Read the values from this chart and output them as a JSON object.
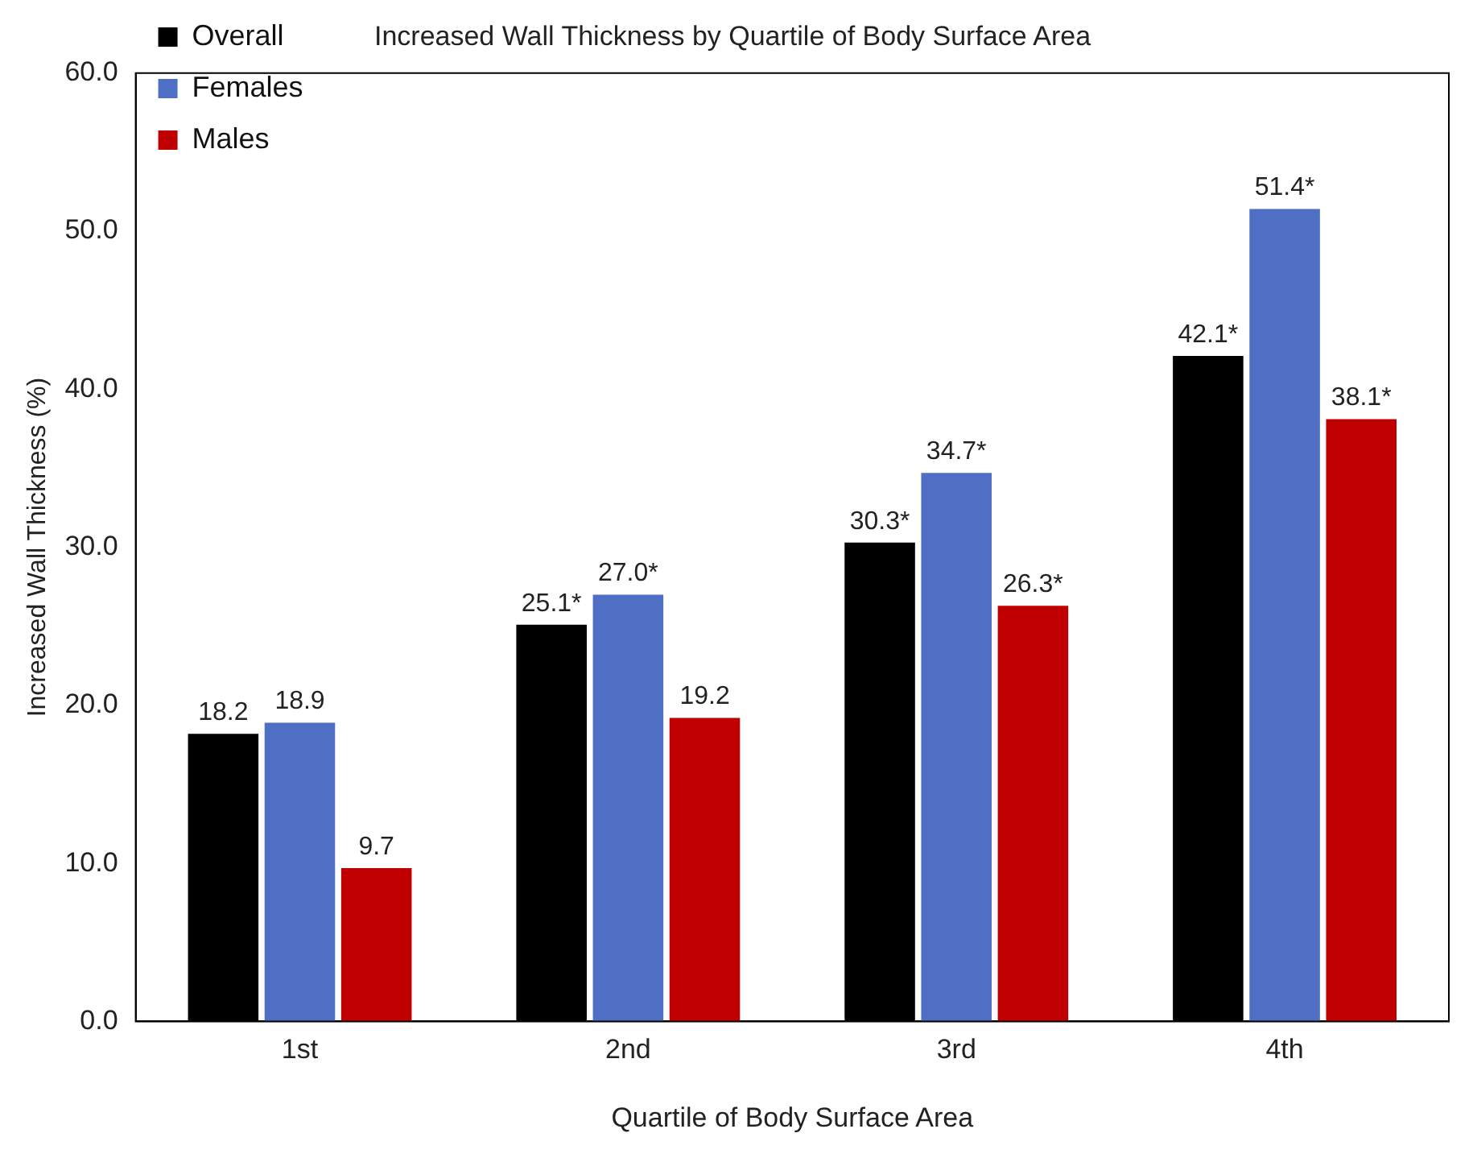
{
  "chart_data": {
    "type": "bar",
    "title": "Increased Wall Thickness by Quartile of Body Surface Area",
    "xlabel": "Quartile of Body Surface Area",
    "ylabel": "Increased Wall Thickness (%)",
    "categories": [
      "1st",
      "2nd",
      "3rd",
      "4th"
    ],
    "series": [
      {
        "name": "Overall",
        "color": "#000000",
        "values": [
          18.2,
          25.1,
          30.3,
          42.1
        ],
        "value_labels": [
          "18.2",
          "25.1*",
          "30.3*",
          "42.1*"
        ]
      },
      {
        "name": "Females",
        "color": "#4f6fc4",
        "values": [
          18.9,
          27.0,
          34.7,
          51.4
        ],
        "value_labels": [
          "18.9",
          "27.0*",
          "34.7*",
          "51.4*"
        ]
      },
      {
        "name": "Males",
        "color": "#c00000",
        "values": [
          9.7,
          19.2,
          26.3,
          38.1
        ],
        "value_labels": [
          "9.7",
          "19.2",
          "26.3*",
          "38.1*"
        ]
      }
    ],
    "ylim": [
      0,
      60
    ],
    "yticks": [
      {
        "value": 0,
        "label": "0.0"
      },
      {
        "value": 10,
        "label": "10.0"
      },
      {
        "value": 20,
        "label": "20.0"
      },
      {
        "value": 30,
        "label": "30.0"
      },
      {
        "value": 40,
        "label": "40.0"
      },
      {
        "value": 50,
        "label": "50.0"
      },
      {
        "value": 60,
        "label": "60.0"
      }
    ],
    "grid": false,
    "legend": "top left"
  }
}
